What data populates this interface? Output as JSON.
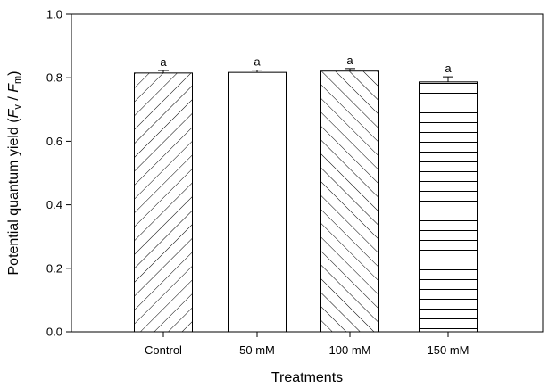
{
  "chart_data": {
    "type": "bar",
    "title": "",
    "xlabel": "Treatments",
    "ylabel": {
      "text": "Potential quantum yield (",
      "f1": "F",
      "sub1": "v",
      "slash": " / ",
      "f2": "F",
      "sub2": "m",
      "close": ")"
    },
    "categories": [
      "Control",
      "50 mM",
      "100 mM",
      "150 mM"
    ],
    "values": [
      0.815,
      0.817,
      0.821,
      0.787
    ],
    "errors": [
      0.008,
      0.007,
      0.008,
      0.016
    ],
    "significance": [
      "a",
      "a",
      "a",
      "a"
    ],
    "patterns": [
      "diag-up",
      "none",
      "diag-down",
      "horizontal"
    ],
    "ylim": [
      0,
      1.0
    ],
    "yticks": [
      "0.0",
      "0.2",
      "0.4",
      "0.6",
      "0.8",
      "1.0"
    ],
    "grid": false,
    "legend": "none"
  }
}
